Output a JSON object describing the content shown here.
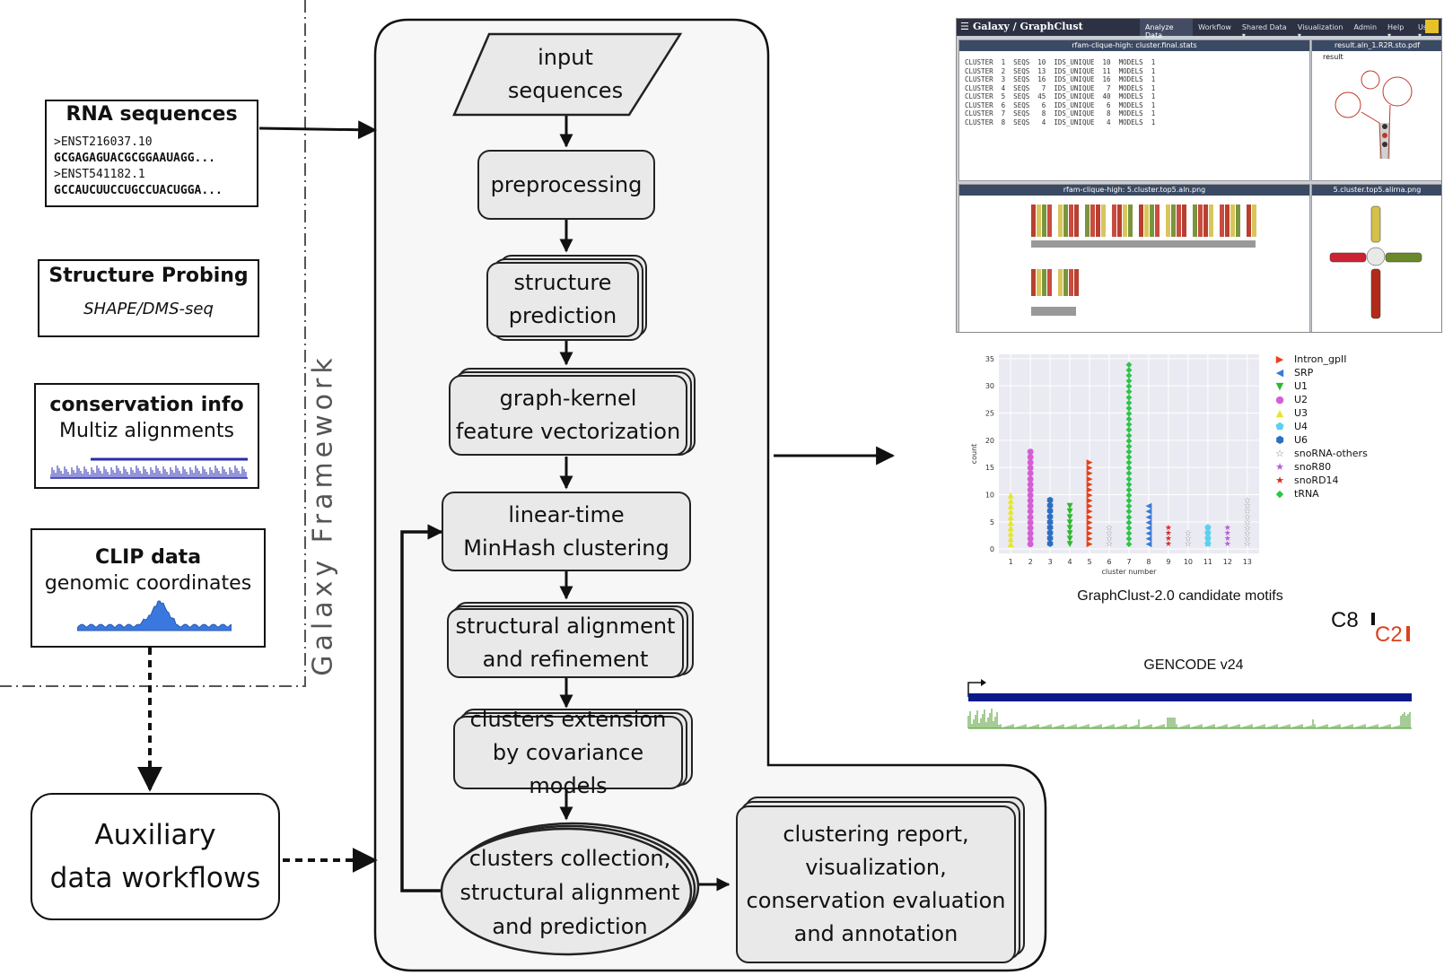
{
  "inputs": {
    "rna": {
      "title": "RNA sequences",
      "lines": [
        {
          "text": ">ENST216037.10",
          "bold": false
        },
        {
          "text": "GCGAGAGUACGCGGAAUAGG...",
          "bold": true
        },
        {
          "text": ">ENST541182.1",
          "bold": false
        },
        {
          "text": "GCCAUCUUCCUGCCUACUGGA...",
          "bold": true
        }
      ]
    },
    "probing": {
      "title": "Structure Probing",
      "subtitle": "SHAPE/DMS-seq"
    },
    "conservation": {
      "title": "conservation info",
      "subtitle": "Multiz alignments"
    },
    "clip": {
      "title": "CLIP data",
      "subtitle": "genomic coordinates"
    }
  },
  "galaxy_label": "Galaxy Framework",
  "auxiliary": "Auxiliary\ndata workflows",
  "pipeline": {
    "input": "input\nsequences",
    "preprocessing": "preprocessing",
    "structure_prediction": "structure\nprediction",
    "feature_vectorization": "graph-kernel\nfeature vectorization",
    "clustering": "linear-time\nMinHash clustering",
    "alignment": "structural alignment\nand refinement",
    "extension": "clusters extension\nby covariance models",
    "collection": "clusters collection,\nstructural alignment\nand prediction",
    "report": "clustering report,\nvisualization,\nconservation evaluation\nand annotation"
  },
  "galaxy_ui": {
    "title": "Galaxy / GraphClust",
    "nav": [
      "Analyze Data",
      "Workflow",
      "Shared Data ▾",
      "Visualization ▾",
      "Admin",
      "Help ▾",
      "User ▾"
    ],
    "panel_titles": [
      "rfam-clique-high: cluster.final.stats",
      "result.aln_1.R2R.sto.pdf",
      "rfam-clique-high: 5.cluster.top5.aln.png",
      "5.cluster.top5.alirna.png"
    ],
    "stats_rows": [
      "CLUSTER  1  SEQS  10  IDS_UNIQUE  10  MODELS  1",
      "CLUSTER  2  SEQS  13  IDS_UNIQUE  11  MODELS  1",
      "CLUSTER  3  SEQS  16  IDS_UNIQUE  16  MODELS  1",
      "CLUSTER  4  SEQS   7  IDS_UNIQUE   7  MODELS  1",
      "CLUSTER  5  SEQS  45  IDS_UNIQUE  40  MODELS  1",
      "CLUSTER  6  SEQS   6  IDS_UNIQUE   6  MODELS  1",
      "CLUSTER  7  SEQS   8  IDS_UNIQUE   8  MODELS  1",
      "CLUSTER  8  SEQS   4  IDS_UNIQUE   4  MODELS  1"
    ],
    "result_label": "result"
  },
  "chart_data": {
    "type": "scatter",
    "title": "GraphClust-2.0 candidate motifs",
    "xlabel": "cluster number",
    "ylabel": "count",
    "x_ticks": [
      "1",
      "2",
      "3",
      "4",
      "5",
      "6",
      "7",
      "8",
      "9",
      "10",
      "11",
      "12",
      "13"
    ],
    "y_ticks": [
      "0",
      "5",
      "10",
      "15",
      "20",
      "25",
      "30",
      "35"
    ],
    "ylim": [
      0,
      35
    ],
    "grid": true,
    "legend_position": "right",
    "series": [
      {
        "name": "Intron_gpII",
        "symbol": "▶",
        "color": "#e8401c",
        "points": [
          [
            5,
            16
          ]
        ]
      },
      {
        "name": "SRP",
        "symbol": "◀",
        "color": "#3a7bd5",
        "points": [
          [
            8,
            8
          ]
        ]
      },
      {
        "name": "U1",
        "symbol": "▼",
        "color": "#2eb82e",
        "points": [
          [
            4,
            8
          ]
        ]
      },
      {
        "name": "U2",
        "symbol": "●",
        "color": "#d45fd4",
        "points": [
          [
            2,
            18
          ]
        ]
      },
      {
        "name": "U3",
        "symbol": "▲",
        "color": "#e6e62e",
        "points": [
          [
            1,
            10
          ]
        ]
      },
      {
        "name": "U4",
        "symbol": "⬟",
        "color": "#5ad1f0",
        "points": [
          [
            11,
            4
          ]
        ]
      },
      {
        "name": "U6",
        "symbol": "⬢",
        "color": "#2b6fc2",
        "points": [
          [
            3,
            9
          ]
        ]
      },
      {
        "name": "snoRNA-others",
        "symbol": "☆",
        "color": "#888888",
        "points": [
          [
            6,
            4
          ],
          [
            10,
            3
          ],
          [
            13,
            9
          ]
        ]
      },
      {
        "name": "snoR80",
        "symbol": "★",
        "color": "#b45fd4",
        "points": [
          [
            12,
            4
          ]
        ]
      },
      {
        "name": "snoRD14",
        "symbol": "★",
        "color": "#d62d2d",
        "points": [
          [
            9,
            4
          ]
        ]
      },
      {
        "name": "tRNA",
        "symbol": "◆",
        "color": "#2ec44a",
        "points": [
          [
            7,
            34
          ]
        ]
      }
    ]
  },
  "genome": {
    "label1": "C8",
    "label2": "C2",
    "label2_color": "#d9431e",
    "track": "GENCODE v24",
    "track_color": "#0a1a8a",
    "cons_color": "#4a9a2a"
  }
}
